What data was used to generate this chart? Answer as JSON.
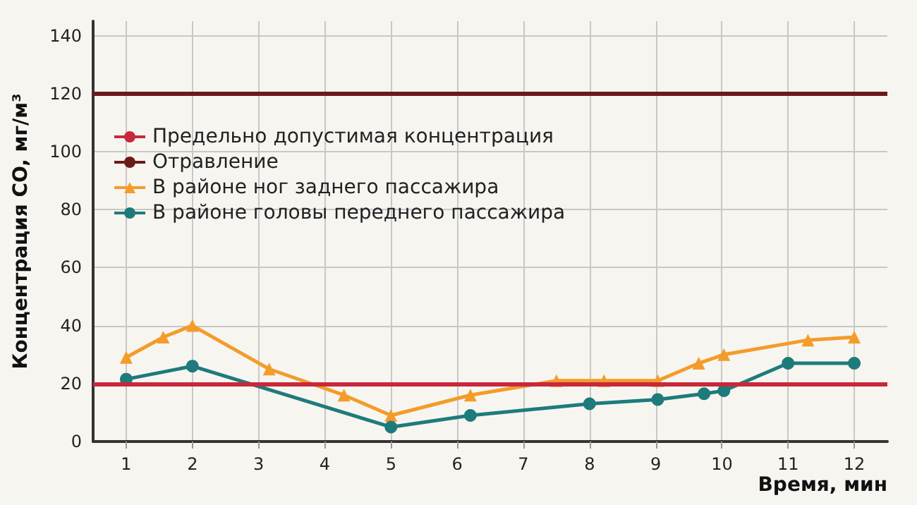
{
  "chart_data": {
    "type": "line",
    "xlabel": "Время, мин",
    "ylabel": "Концентрация CO, мг/м³",
    "xlim": [
      0.5,
      12.5
    ],
    "xticks": [
      1,
      2,
      3,
      4,
      5,
      6,
      7,
      8,
      9,
      10,
      11,
      12
    ],
    "ylim": [
      0,
      145
    ],
    "yticks": [
      0,
      20,
      40,
      60,
      80,
      100,
      120,
      140
    ],
    "grid": true,
    "legend": "left",
    "ref_lines": [
      {
        "axis": "y",
        "value": 20,
        "label": "Предельно допустимая концентрация",
        "color": "#c8283c"
      },
      {
        "axis": "y",
        "value": 120,
        "label": "Отравление",
        "color": "#6b1a1a"
      }
    ],
    "series": [
      {
        "name": "В районе ног заднего пассажира",
        "color": "#f39c2a",
        "marker": "triangle",
        "x": [
          1,
          1.56,
          2,
          3.16,
          4.29,
          5,
          6.2,
          7.5,
          8.22,
          9.03,
          9.65,
          10.03,
          11.3,
          12
        ],
        "values": [
          29,
          36,
          40,
          25,
          16,
          9,
          16,
          21,
          21,
          21,
          27,
          30,
          35,
          36
        ]
      },
      {
        "name": "В районе головы переднего пассажира",
        "color": "#1e7b7b",
        "marker": "circle",
        "x": [
          1,
          2,
          5,
          6.2,
          8,
          9.03,
          9.73,
          10.03,
          11,
          12
        ],
        "values": [
          21.5,
          26,
          5,
          9,
          13,
          14.5,
          16.5,
          17.5,
          27,
          27
        ]
      }
    ]
  }
}
